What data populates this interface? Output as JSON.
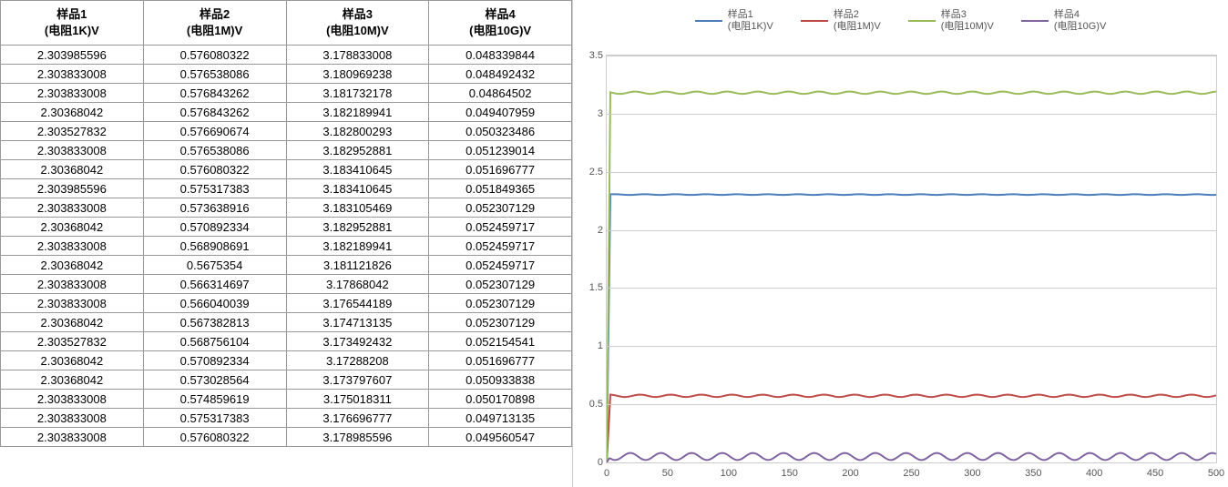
{
  "table": {
    "headers": [
      {
        "line1": "样品1",
        "line2": "(电阻1K)V"
      },
      {
        "line1": "样品2",
        "line2": "(电阻1M)V"
      },
      {
        "line1": "样品3",
        "line2": "(电阻10M)V"
      },
      {
        "line1": "样品4",
        "line2": "(电阻10G)V"
      }
    ],
    "rows": [
      [
        "2.303985596",
        "0.576080322",
        "3.178833008",
        "0.048339844"
      ],
      [
        "2.303833008",
        "0.576538086",
        "3.180969238",
        "0.048492432"
      ],
      [
        "2.303833008",
        "0.576843262",
        "3.181732178",
        "0.04864502"
      ],
      [
        "2.30368042",
        "0.576843262",
        "3.182189941",
        "0.049407959"
      ],
      [
        "2.303527832",
        "0.576690674",
        "3.182800293",
        "0.050323486"
      ],
      [
        "2.303833008",
        "0.576538086",
        "3.182952881",
        "0.051239014"
      ],
      [
        "2.30368042",
        "0.576080322",
        "3.183410645",
        "0.051696777"
      ],
      [
        "2.303985596",
        "0.575317383",
        "3.183410645",
        "0.051849365"
      ],
      [
        "2.303833008",
        "0.573638916",
        "3.183105469",
        "0.052307129"
      ],
      [
        "2.30368042",
        "0.570892334",
        "3.182952881",
        "0.052459717"
      ],
      [
        "2.303833008",
        "0.568908691",
        "3.182189941",
        "0.052459717"
      ],
      [
        "2.30368042",
        "0.5675354",
        "3.181121826",
        "0.052459717"
      ],
      [
        "2.303833008",
        "0.566314697",
        "3.17868042",
        "0.052307129"
      ],
      [
        "2.303833008",
        "0.566040039",
        "3.176544189",
        "0.052307129"
      ],
      [
        "2.30368042",
        "0.567382813",
        "3.174713135",
        "0.052307129"
      ],
      [
        "2.303527832",
        "0.568756104",
        "3.173492432",
        "0.052154541"
      ],
      [
        "2.30368042",
        "0.570892334",
        "3.17288208",
        "0.051696777"
      ],
      [
        "2.30368042",
        "0.573028564",
        "3.173797607",
        "0.050933838"
      ],
      [
        "2.303833008",
        "0.574859619",
        "3.175018311",
        "0.050170898"
      ],
      [
        "2.303833008",
        "0.575317383",
        "3.176696777",
        "0.049713135"
      ],
      [
        "2.303833008",
        "0.576080322",
        "3.178985596",
        "0.049560547"
      ]
    ]
  },
  "chart": {
    "type": "line",
    "legend": [
      {
        "line1": "样品1",
        "line2": "(电阻1K)V",
        "color": "#4a7ebb"
      },
      {
        "line1": "样品2",
        "line2": "(电阻1M)V",
        "color": "#be4b48"
      },
      {
        "line1": "样品3",
        "line2": "(电阻10M)V",
        "color": "#9abb59"
      },
      {
        "line1": "样品4",
        "line2": "(电阻10G)V",
        "color": "#8064a2"
      }
    ],
    "ylim": [
      0,
      3.5
    ],
    "ytick_step": 0.5,
    "xlim": [
      0,
      500
    ],
    "xtick_step": 50,
    "grid_color": "#cccccc",
    "background_color": "#ffffff",
    "line_width": 2,
    "series": [
      {
        "color": "#4a7ebb",
        "start_value": 0,
        "value": 2.304,
        "wobble": 0.003
      },
      {
        "color": "#be4b48",
        "start_value": 0,
        "value": 0.573,
        "wobble": 0.01
      },
      {
        "color": "#9abb59",
        "start_value": 0,
        "value": 3.18,
        "wobble": 0.01
      },
      {
        "color": "#8064a2",
        "start_value": 0,
        "value": 0.051,
        "wobble": 0.03
      }
    ],
    "x_count": 500
  }
}
